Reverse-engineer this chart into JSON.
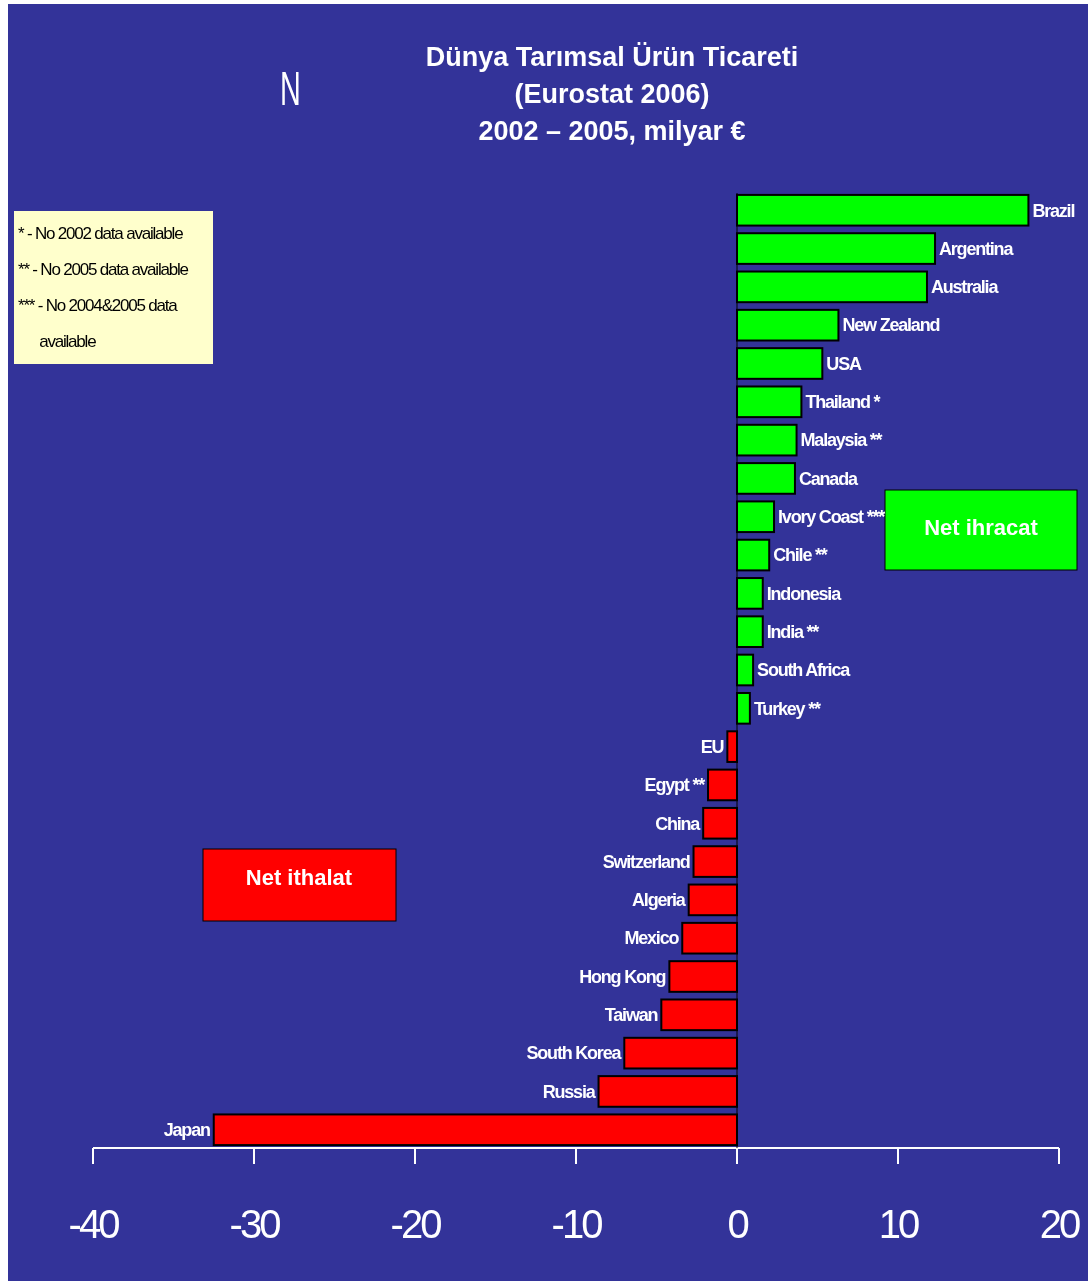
{
  "chart_data": {
    "type": "bar",
    "orientation": "horizontal",
    "title": "Dünya Tarımsal Ürün Ticareti\n(Eurostat 2006)\n2002 – 2005, milyar €",
    "categories": [
      "Brazil",
      "Argentina",
      "Australia",
      "New Zealand",
      "USA",
      "Thailand *",
      "Malaysia **",
      "Canada",
      "Ivory Coast ***",
      "Chile **",
      "Indonesia",
      "India **",
      "South Africa",
      "Turkey **",
      "EU",
      "Egypt **",
      "China",
      "Switzerland",
      "Algeria",
      "Mexico",
      "Hong Kong",
      "Taiwan",
      "South Korea",
      "Russia",
      "Japan"
    ],
    "values": [
      18.1,
      12.3,
      11.8,
      6.3,
      5.3,
      4.0,
      3.7,
      3.6,
      2.3,
      2.0,
      1.6,
      1.6,
      1.0,
      0.8,
      -0.6,
      -1.8,
      -2.1,
      -2.7,
      -3.0,
      -3.4,
      -4.2,
      -4.7,
      -7.0,
      -8.6,
      -32.5
    ],
    "colors": [
      "#00ff00",
      "#00ff00",
      "#00ff00",
      "#00ff00",
      "#00ff00",
      "#00ff00",
      "#00ff00",
      "#00ff00",
      "#00ff00",
      "#00ff00",
      "#00ff00",
      "#00ff00",
      "#00ff00",
      "#00ff00",
      "#ff0000",
      "#ff0000",
      "#ff0000",
      "#ff0000",
      "#ff0000",
      "#ff0000",
      "#ff0000",
      "#ff0000",
      "#ff0000",
      "#ff0000",
      "#ff0000"
    ],
    "xlim": [
      -40,
      20
    ],
    "xticks": [
      -40,
      -30,
      -20,
      -10,
      0,
      10,
      20
    ],
    "annotations": [
      "N",
      "* - No 2002 data available\n** - No 2005 data available\n*** - No 2004&2005 data\n      available",
      "Net ihracat",
      "Net ithalat"
    ]
  }
}
